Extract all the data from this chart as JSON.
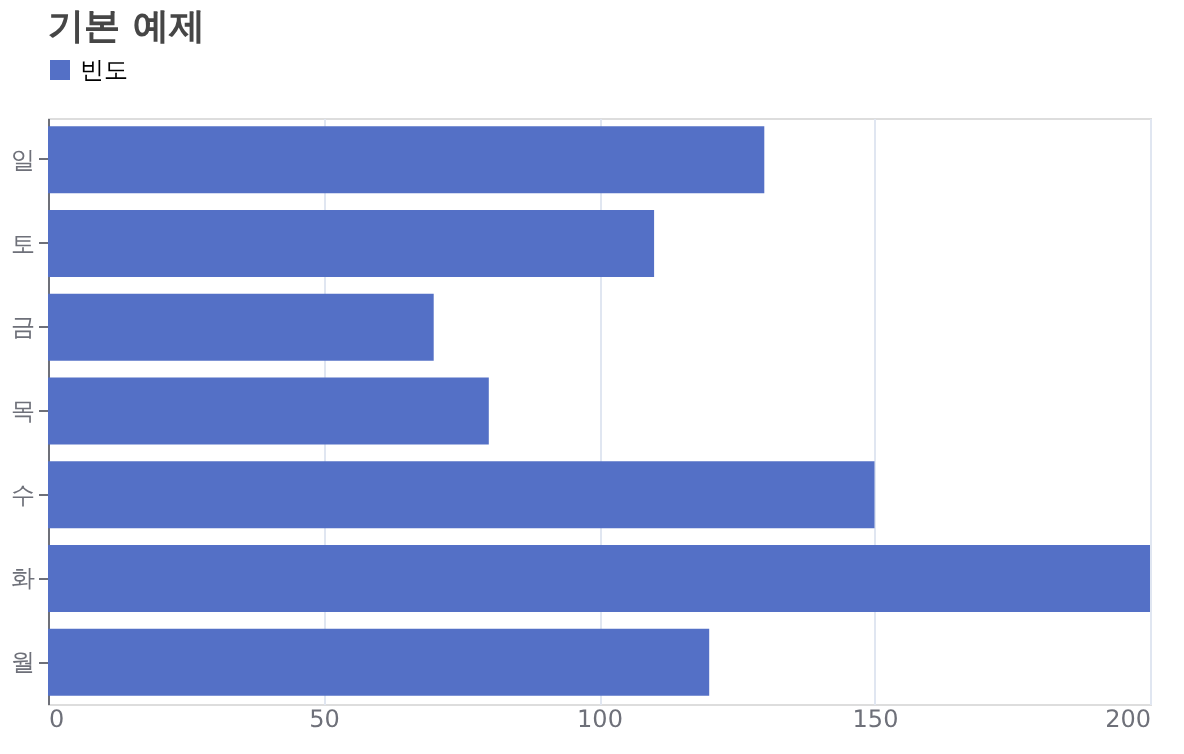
{
  "chart_data": {
    "type": "bar",
    "orientation": "horizontal",
    "title": "기본 예제",
    "categories": [
      "일",
      "토",
      "금",
      "목",
      "수",
      "화",
      "월"
    ],
    "series": [
      {
        "name": "빈도",
        "color": "#5470c6",
        "values": [
          130,
          110,
          70,
          80,
          150,
          200,
          120
        ]
      }
    ],
    "xlim": [
      0,
      200
    ],
    "xticks": [
      0,
      50,
      100,
      150,
      200
    ],
    "grid": "x",
    "legend": "top"
  }
}
